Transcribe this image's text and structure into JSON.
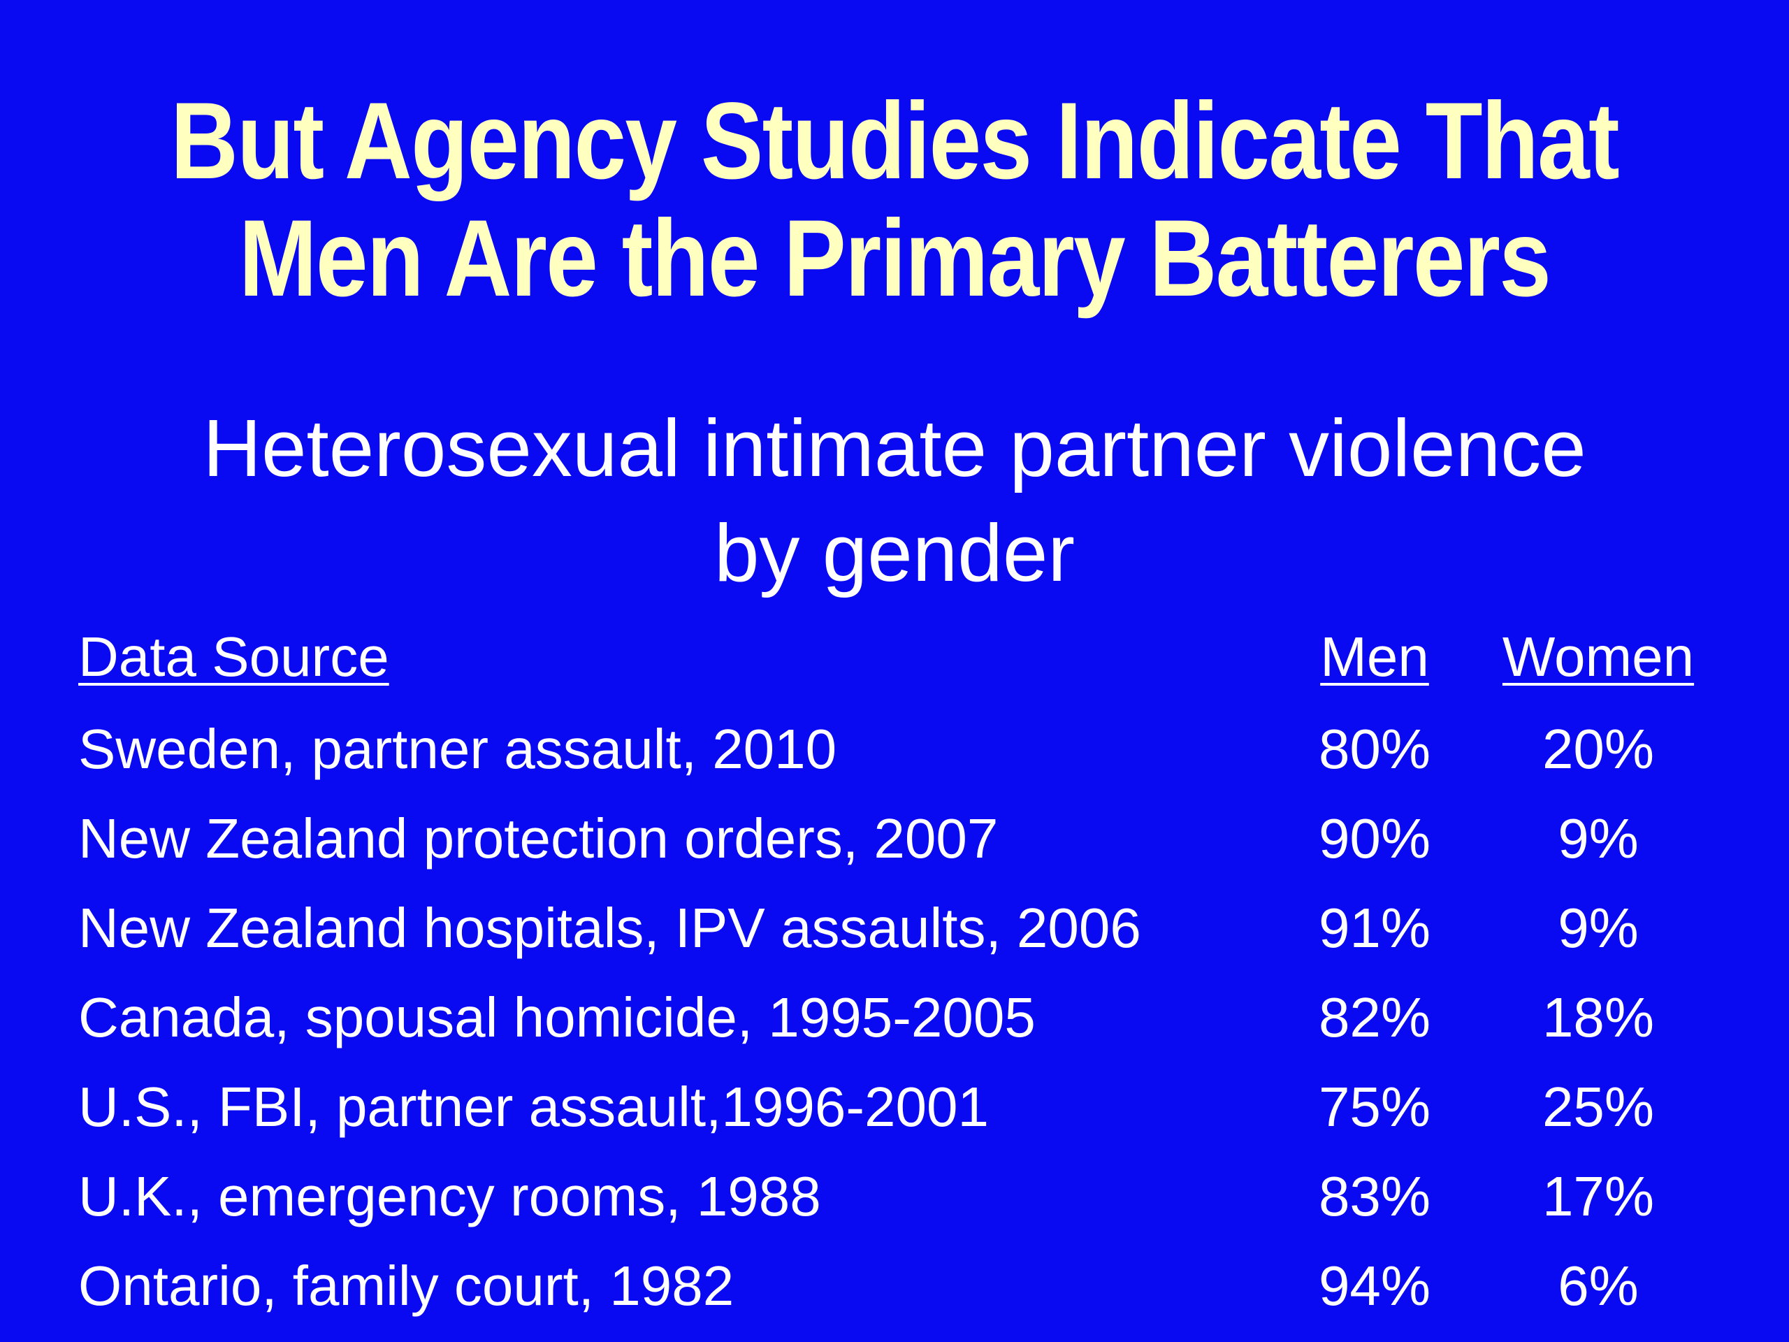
{
  "slide": {
    "title_lines": [
      "But Agency Studies Indicate That",
      "Men Are the Primary Batterers"
    ],
    "subtitle_lines": [
      "Heterosexual intimate partner violence",
      "by gender"
    ]
  },
  "table": {
    "headers": {
      "source": "Data Source",
      "men": "Men",
      "women": "Women"
    },
    "rows": [
      {
        "source": "Sweden, partner assault, 2010",
        "men": "80%",
        "women": "20%"
      },
      {
        "source": "New Zealand protection orders, 2007",
        "men": "90%",
        "women": "9%"
      },
      {
        "source": "New Zealand hospitals, IPV assaults, 2006",
        "men": "91%",
        "women": "9%"
      },
      {
        "source": "Canada, spousal homicide, 1995-2005",
        "men": "82%",
        "women": "18%"
      },
      {
        "source": "U.S., FBI, partner assault,1996-2001",
        "men": "75%",
        "women": "25%"
      },
      {
        "source": "U.K., emergency rooms, 1988",
        "men": "83%",
        "women": "17%"
      },
      {
        "source": "Ontario, family court, 1982",
        "men": "94%",
        "women": "6%"
      }
    ]
  },
  "colors": {
    "background": "#0a0af2",
    "title": "#ffffc0",
    "text": "#ffffff"
  }
}
